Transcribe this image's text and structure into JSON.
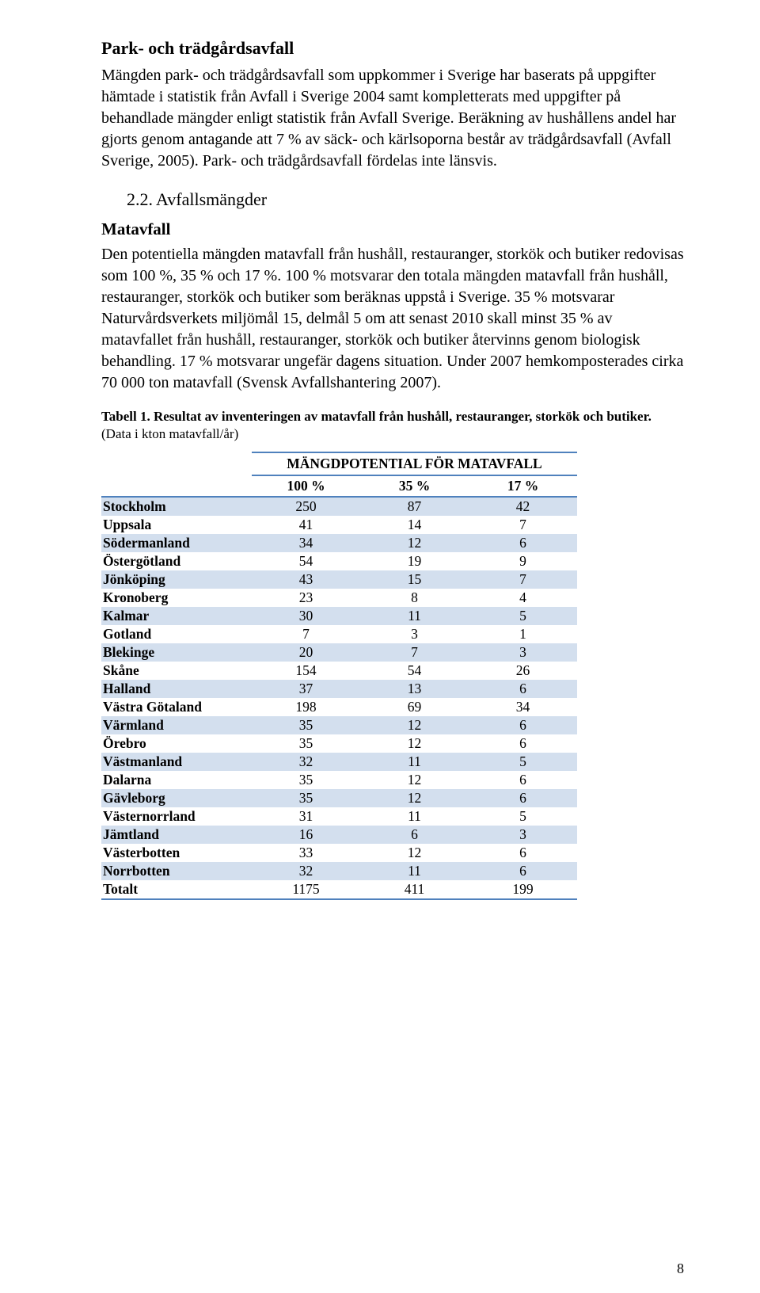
{
  "section1": {
    "heading": "Park- och trädgårdsavfall",
    "para": "Mängden park- och trädgårdsavfall som uppkommer i Sverige har baserats på uppgifter hämtade i statistik från Avfall i Sverige 2004 samt kompletterats med uppgifter på behandlade mängder enligt statistik från Avfall Sverige. Beräkning av hushållens andel har gjorts genom antagande att 7 % av säck- och kärlsoporna består av trädgårdsavfall (Avfall Sverige, 2005). Park- och trädgårdsavfall fördelas inte länsvis."
  },
  "section2": {
    "number": "2.2.",
    "heading": "Avfallsmängder",
    "subheading": "Matavfall",
    "para": "Den potentiella mängden matavfall från hushåll, restauranger, storkök och butiker redovisas som 100 %, 35 % och 17 %. 100 % motsvarar den totala mängden matavfall från hushåll, restauranger, storkök och butiker som beräknas uppstå i Sverige. 35 % motsvarar Naturvårdsverkets miljömål 15, delmål 5 om att senast 2010 skall minst 35 % av matavfallet från hushåll, restauranger, storkök och butiker återvinns genom biologisk behandling. 17 % motsvarar ungefär dagens situation. Under 2007 hemkomposterades cirka 70 000 ton matavfall (Svensk Avfallshantering 2007)."
  },
  "table": {
    "caption_bold": "Tabell 1. Resultat av inventeringen av matavfall från hushåll, restauranger, storkök och butiker.",
    "caption_sub": "(Data i kton matavfall/år)",
    "top_header": "MÄNGDPOTENTIAL FÖR MATAVFALL",
    "sub_headers": [
      "100 %",
      "35 %",
      "17 %"
    ],
    "rows": [
      {
        "label": "Stockholm",
        "v": [
          "250",
          "87",
          "42"
        ]
      },
      {
        "label": "Uppsala",
        "v": [
          "41",
          "14",
          "7"
        ]
      },
      {
        "label": "Södermanland",
        "v": [
          "34",
          "12",
          "6"
        ]
      },
      {
        "label": "Östergötland",
        "v": [
          "54",
          "19",
          "9"
        ]
      },
      {
        "label": "Jönköping",
        "v": [
          "43",
          "15",
          "7"
        ]
      },
      {
        "label": "Kronoberg",
        "v": [
          "23",
          "8",
          "4"
        ]
      },
      {
        "label": "Kalmar",
        "v": [
          "30",
          "11",
          "5"
        ]
      },
      {
        "label": "Gotland",
        "v": [
          "7",
          "3",
          "1"
        ]
      },
      {
        "label": "Blekinge",
        "v": [
          "20",
          "7",
          "3"
        ]
      },
      {
        "label": "Skåne",
        "v": [
          "154",
          "54",
          "26"
        ]
      },
      {
        "label": "Halland",
        "v": [
          "37",
          "13",
          "6"
        ]
      },
      {
        "label": "Västra Götaland",
        "v": [
          "198",
          "69",
          "34"
        ]
      },
      {
        "label": "Värmland",
        "v": [
          "35",
          "12",
          "6"
        ]
      },
      {
        "label": "Örebro",
        "v": [
          "35",
          "12",
          "6"
        ]
      },
      {
        "label": "Västmanland",
        "v": [
          "32",
          "11",
          "5"
        ]
      },
      {
        "label": "Dalarna",
        "v": [
          "35",
          "12",
          "6"
        ]
      },
      {
        "label": "Gävleborg",
        "v": [
          "35",
          "12",
          "6"
        ]
      },
      {
        "label": "Västernorrland",
        "v": [
          "31",
          "11",
          "5"
        ]
      },
      {
        "label": "Jämtland",
        "v": [
          "16",
          "6",
          "3"
        ]
      },
      {
        "label": "Västerbotten",
        "v": [
          "33",
          "12",
          "6"
        ]
      },
      {
        "label": "Norrbotten",
        "v": [
          "32",
          "11",
          "6"
        ]
      },
      {
        "label": "Totalt",
        "v": [
          "1175",
          "411",
          "199"
        ]
      }
    ],
    "colors": {
      "even_row_bg": "#d3dfee",
      "odd_row_bg": "#ffffff",
      "border": "#4f81bd"
    }
  },
  "page_number": "8"
}
